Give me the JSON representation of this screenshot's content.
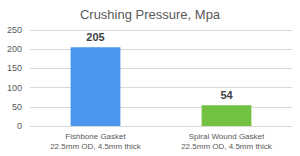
{
  "chart_data": {
    "type": "bar",
    "title": "Crushing Pressure, Mpa",
    "categories": [
      "Fishbone Gasket\n22.5mm OD, 4.5mm thick",
      "Spiral Wound Gasket\n22.5mm OD, 4.5mm thick"
    ],
    "values": [
      205,
      54
    ],
    "colors": [
      "#4b95ee",
      "#72c142"
    ],
    "ylim": [
      0,
      250
    ],
    "yticks": [
      0,
      50,
      100,
      150,
      200,
      250
    ],
    "grid": true,
    "data_labels": true
  }
}
